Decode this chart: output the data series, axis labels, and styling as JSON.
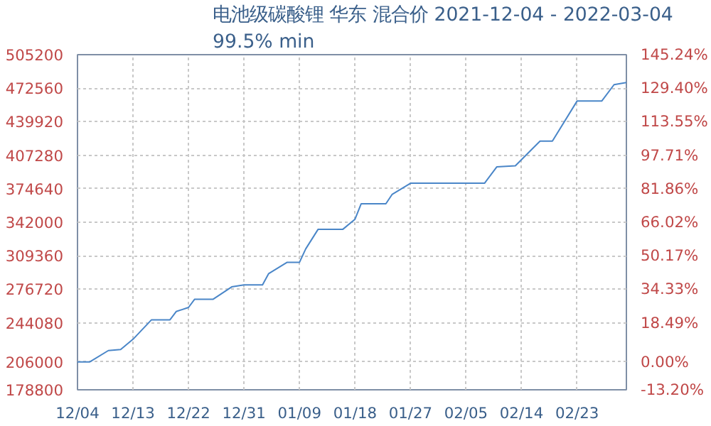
{
  "chart_data": {
    "type": "line",
    "title": "电池级碳酸锂 华东 混合价 2021-12-04 - 2022-03-04",
    "subtitle": "99.5% min",
    "x": [
      "2021-12-04",
      "2021-12-06",
      "2021-12-09",
      "2021-12-11",
      "2021-12-13",
      "2021-12-16",
      "2021-12-19",
      "2021-12-20",
      "2021-12-22",
      "2021-12-23",
      "2021-12-26",
      "2021-12-29",
      "2021-12-31",
      "2022-01-03",
      "2022-01-04",
      "2022-01-07",
      "2022-01-09",
      "2022-01-10",
      "2022-01-12",
      "2022-01-16",
      "2022-01-18",
      "2022-01-19",
      "2022-01-23",
      "2022-01-24",
      "2022-01-27",
      "2022-02-08",
      "2022-02-10",
      "2022-02-13",
      "2022-02-17",
      "2022-02-19",
      "2022-02-23",
      "2022-02-27",
      "2022-03-01",
      "2022-03-03"
    ],
    "series": [
      {
        "color": "#4a86c8",
        "values": [
          206000,
          206000,
          217000,
          218000,
          228000,
          247000,
          247000,
          255000,
          259000,
          267000,
          267000,
          279000,
          281000,
          281000,
          292000,
          303000,
          303000,
          316000,
          335000,
          335000,
          345000,
          360000,
          360000,
          369000,
          380000,
          380000,
          396000,
          397000,
          421000,
          421000,
          460000,
          460000,
          476000,
          478000
        ]
      }
    ],
    "xlim": [
      "2021-12-04",
      "2022-03-03"
    ],
    "xticks": [
      {
        "value": "2021-12-04",
        "label": "12/04"
      },
      {
        "value": "2021-12-13",
        "label": "12/13"
      },
      {
        "value": "2021-12-22",
        "label": "12/22"
      },
      {
        "value": "2021-12-31",
        "label": "12/31"
      },
      {
        "value": "2022-01-09",
        "label": "01/09"
      },
      {
        "value": "2022-01-18",
        "label": "01/18"
      },
      {
        "value": "2022-01-27",
        "label": "01/27"
      },
      {
        "value": "2022-02-05",
        "label": "02/05"
      },
      {
        "value": "2022-02-14",
        "label": "02/14"
      },
      {
        "value": "2022-02-23",
        "label": "02/23"
      }
    ],
    "ylim": [
      178800,
      505200
    ],
    "yticks": [
      178800,
      206000,
      244080,
      276720,
      309360,
      342000,
      374640,
      407280,
      439920,
      472560,
      505200
    ],
    "y2lim": [
      -13.2,
      145.24
    ],
    "y2ticks": [
      {
        "value": -13.2,
        "label": "-13.20%"
      },
      {
        "value": 0,
        "label": "0.00%"
      },
      {
        "value": 18.49,
        "label": "18.49%"
      },
      {
        "value": 34.33,
        "label": "34.33%"
      },
      {
        "value": 50.17,
        "label": "50.17%"
      },
      {
        "value": 66.02,
        "label": "66.02%"
      },
      {
        "value": 81.86,
        "label": "81.86%"
      },
      {
        "value": 97.71,
        "label": "97.71%"
      },
      {
        "value": 113.55,
        "label": "113.55%"
      },
      {
        "value": 129.4,
        "label": "129.40%"
      },
      {
        "value": 145.24,
        "label": "145.24%"
      }
    ],
    "grid": true,
    "marker": "none",
    "line_style": "solid"
  }
}
